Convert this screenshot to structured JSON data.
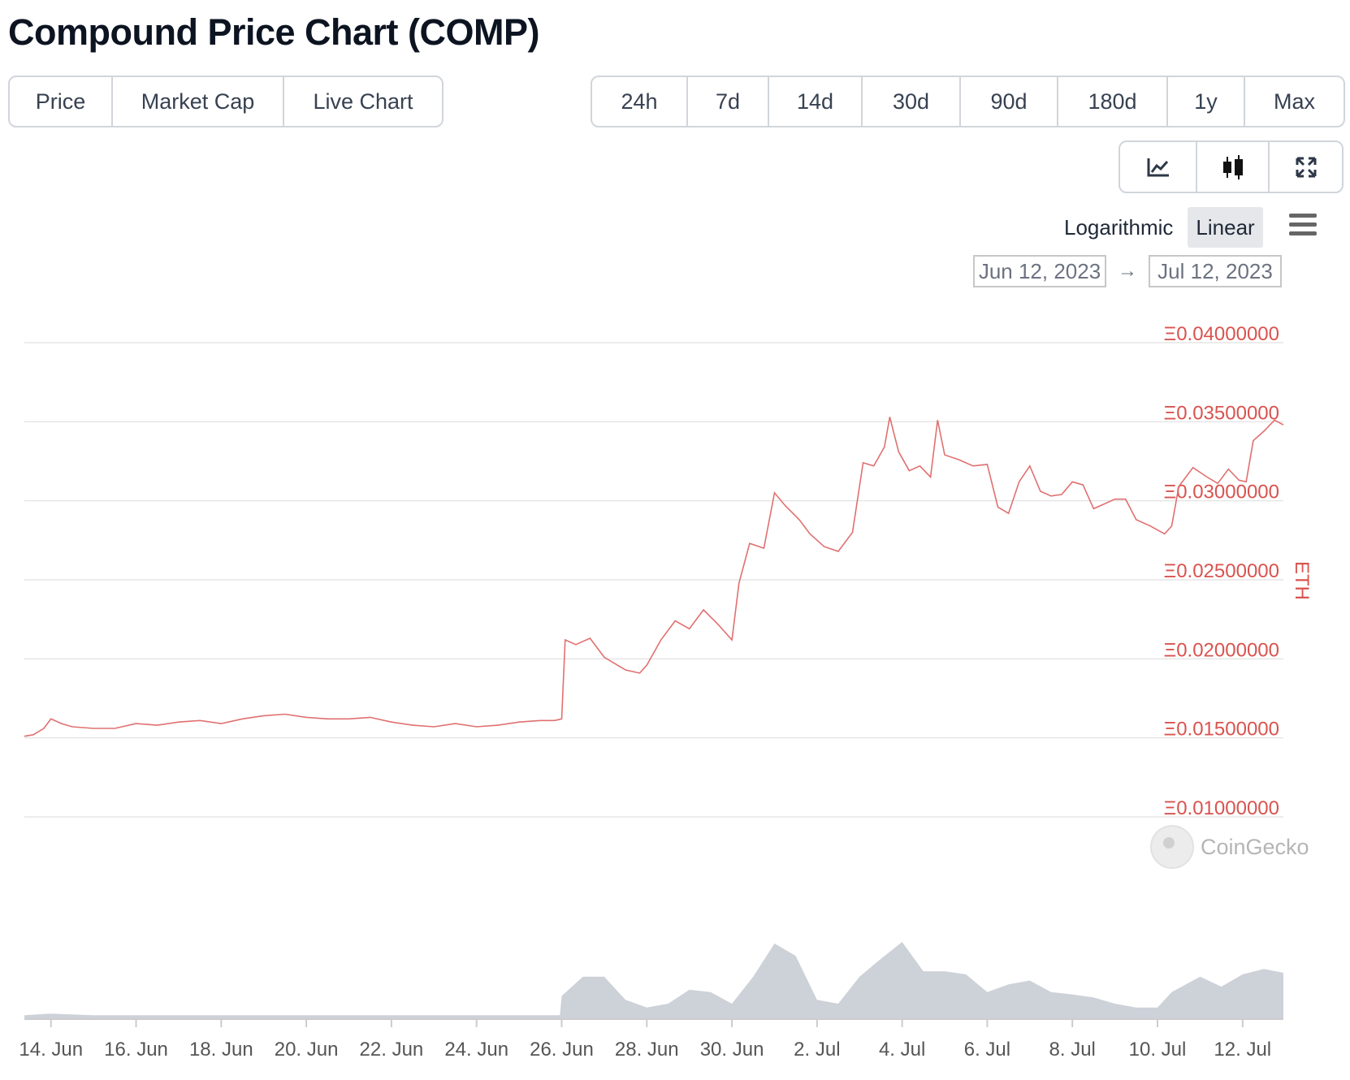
{
  "title": "Compound Price Chart (COMP)",
  "left_tabs": [
    {
      "label": "Price",
      "active": true
    },
    {
      "label": "Market Cap",
      "active": false
    },
    {
      "label": "Live Chart",
      "active": false
    }
  ],
  "range_tabs": [
    {
      "label": "24h",
      "active": false
    },
    {
      "label": "7d",
      "active": false
    },
    {
      "label": "14d",
      "active": false
    },
    {
      "label": "30d",
      "active": true
    },
    {
      "label": "90d",
      "active": false
    },
    {
      "label": "180d",
      "active": false
    },
    {
      "label": "1y",
      "active": false
    },
    {
      "label": "Max",
      "active": false
    }
  ],
  "view_tabs": [
    {
      "icon": "line-chart-icon",
      "active": true
    },
    {
      "icon": "candlestick-icon",
      "active": false
    },
    {
      "icon": "expand-icon",
      "active": false
    }
  ],
  "scale": {
    "logarithmic": "Logarithmic",
    "linear": "Linear",
    "active": "Linear"
  },
  "menu_icon": "hamburger-menu-icon",
  "date_range": {
    "from": "Jun 12, 2023",
    "arrow": "→",
    "to": "Jul 12, 2023"
  },
  "watermark": "CoinGecko",
  "colors": {
    "price_line": "#e07070",
    "volume": "#c8ccd4",
    "axis_label": "#d9534f",
    "grid": "#e6e6e6"
  },
  "chart_data": {
    "type": "line",
    "ylabel": "ETH",
    "yscale": "linear",
    "ylim": [
      0.01,
      0.04
    ],
    "yticks": [
      0.01,
      0.015,
      0.02,
      0.025,
      0.03,
      0.035,
      0.04
    ],
    "ytick_labels": [
      "Ξ0.01000000",
      "Ξ0.01500000",
      "Ξ0.02000000",
      "Ξ0.02500000",
      "Ξ0.03000000",
      "Ξ0.03500000",
      "Ξ0.04000000"
    ],
    "xlim": [
      "2023-06-13T09:00",
      "2023-07-12T23:00"
    ],
    "xticks": [
      "2023-06-14",
      "2023-06-16",
      "2023-06-18",
      "2023-06-20",
      "2023-06-22",
      "2023-06-24",
      "2023-06-26",
      "2023-06-28",
      "2023-06-30",
      "2023-07-02",
      "2023-07-04",
      "2023-07-06",
      "2023-07-08",
      "2023-07-10",
      "2023-07-12"
    ],
    "xtick_labels": [
      "14. Jun",
      "16. Jun",
      "18. Jun",
      "20. Jun",
      "22. Jun",
      "24. Jun",
      "26. Jun",
      "28. Jun",
      "30. Jun",
      "2. Jul",
      "4. Jul",
      "6. Jul",
      "8. Jul",
      "10. Jul",
      "12. Jul"
    ],
    "grid": true,
    "legend": "none",
    "series": [
      {
        "price": [
          [
            "2023-06-13T09:00",
            0.0151
          ],
          [
            "2023-06-13T14:00",
            0.0152
          ],
          [
            "2023-06-13T20:00",
            0.0156
          ],
          [
            "2023-06-14T00:00",
            0.0162
          ],
          [
            "2023-06-14T06:00",
            0.0159
          ],
          [
            "2023-06-14T12:00",
            0.0157
          ],
          [
            "2023-06-15T00:00",
            0.0156
          ],
          [
            "2023-06-15T12:00",
            0.0156
          ],
          [
            "2023-06-16T00:00",
            0.0159
          ],
          [
            "2023-06-16T12:00",
            0.0158
          ],
          [
            "2023-06-17T00:00",
            0.016
          ],
          [
            "2023-06-17T12:00",
            0.0161
          ],
          [
            "2023-06-18T00:00",
            0.0159
          ],
          [
            "2023-06-18T12:00",
            0.0162
          ],
          [
            "2023-06-19T00:00",
            0.0164
          ],
          [
            "2023-06-19T12:00",
            0.0165
          ],
          [
            "2023-06-20T00:00",
            0.0163
          ],
          [
            "2023-06-20T12:00",
            0.0162
          ],
          [
            "2023-06-21T00:00",
            0.0162
          ],
          [
            "2023-06-21T12:00",
            0.0163
          ],
          [
            "2023-06-22T00:00",
            0.016
          ],
          [
            "2023-06-22T12:00",
            0.0158
          ],
          [
            "2023-06-23T00:00",
            0.0157
          ],
          [
            "2023-06-23T12:00",
            0.0159
          ],
          [
            "2023-06-24T00:00",
            0.0157
          ],
          [
            "2023-06-24T12:00",
            0.0158
          ],
          [
            "2023-06-25T00:00",
            0.016
          ],
          [
            "2023-06-25T12:00",
            0.0161
          ],
          [
            "2023-06-25T20:00",
            0.0161
          ],
          [
            "2023-06-26T00:00",
            0.0162
          ],
          [
            "2023-06-26T02:00",
            0.0212
          ],
          [
            "2023-06-26T08:00",
            0.0209
          ],
          [
            "2023-06-26T16:00",
            0.0213
          ],
          [
            "2023-06-27T00:00",
            0.0201
          ],
          [
            "2023-06-27T12:00",
            0.0193
          ],
          [
            "2023-06-27T20:00",
            0.0191
          ],
          [
            "2023-06-28T00:00",
            0.0196
          ],
          [
            "2023-06-28T08:00",
            0.0212
          ],
          [
            "2023-06-28T16:00",
            0.0224
          ],
          [
            "2023-06-29T00:00",
            0.0219
          ],
          [
            "2023-06-29T08:00",
            0.0231
          ],
          [
            "2023-06-29T16:00",
            0.0222
          ],
          [
            "2023-06-30T00:00",
            0.0212
          ],
          [
            "2023-06-30T04:00",
            0.0248
          ],
          [
            "2023-06-30T10:00",
            0.0273
          ],
          [
            "2023-06-30T18:00",
            0.027
          ],
          [
            "2023-07-01T00:00",
            0.0305
          ],
          [
            "2023-07-01T06:00",
            0.0297
          ],
          [
            "2023-07-01T14:00",
            0.0288
          ],
          [
            "2023-07-01T20:00",
            0.0279
          ],
          [
            "2023-07-02T04:00",
            0.0271
          ],
          [
            "2023-07-02T12:00",
            0.0268
          ],
          [
            "2023-07-02T20:00",
            0.028
          ],
          [
            "2023-07-03T02:00",
            0.0324
          ],
          [
            "2023-07-03T08:00",
            0.0322
          ],
          [
            "2023-07-03T14:00",
            0.0334
          ],
          [
            "2023-07-03T17:00",
            0.0353
          ],
          [
            "2023-07-03T22:00",
            0.0331
          ],
          [
            "2023-07-04T04:00",
            0.0319
          ],
          [
            "2023-07-04T10:00",
            0.0322
          ],
          [
            "2023-07-04T16:00",
            0.0315
          ],
          [
            "2023-07-04T20:00",
            0.0351
          ],
          [
            "2023-07-05T00:00",
            0.0329
          ],
          [
            "2023-07-05T08:00",
            0.0326
          ],
          [
            "2023-07-05T16:00",
            0.0322
          ],
          [
            "2023-07-06T00:00",
            0.0323
          ],
          [
            "2023-07-06T06:00",
            0.0296
          ],
          [
            "2023-07-06T12:00",
            0.0292
          ],
          [
            "2023-07-06T18:00",
            0.0312
          ],
          [
            "2023-07-07T00:00",
            0.0322
          ],
          [
            "2023-07-07T06:00",
            0.0306
          ],
          [
            "2023-07-07T12:00",
            0.0303
          ],
          [
            "2023-07-07T18:00",
            0.0304
          ],
          [
            "2023-07-08T00:00",
            0.0312
          ],
          [
            "2023-07-08T06:00",
            0.031
          ],
          [
            "2023-07-08T12:00",
            0.0295
          ],
          [
            "2023-07-08T18:00",
            0.0298
          ],
          [
            "2023-07-09T00:00",
            0.0301
          ],
          [
            "2023-07-09T06:00",
            0.0301
          ],
          [
            "2023-07-09T12:00",
            0.0288
          ],
          [
            "2023-07-09T20:00",
            0.0284
          ],
          [
            "2023-07-10T04:00",
            0.0279
          ],
          [
            "2023-07-10T08:00",
            0.0284
          ],
          [
            "2023-07-10T12:00",
            0.0309
          ],
          [
            "2023-07-10T20:00",
            0.0321
          ],
          [
            "2023-07-11T04:00",
            0.0315
          ],
          [
            "2023-07-11T10:00",
            0.0311
          ],
          [
            "2023-07-11T16:00",
            0.032
          ],
          [
            "2023-07-11T22:00",
            0.0313
          ],
          [
            "2023-07-12T02:00",
            0.0312
          ],
          [
            "2023-07-12T06:00",
            0.0338
          ],
          [
            "2023-07-12T12:00",
            0.0344
          ],
          [
            "2023-07-12T18:00",
            0.0351
          ],
          [
            "2023-07-12T23:00",
            0.0348
          ]
        ]
      },
      {
        "volume_relative": [
          [
            "2023-06-13T09:00",
            0.05
          ],
          [
            "2023-06-14T00:00",
            0.07
          ],
          [
            "2023-06-15T00:00",
            0.05
          ],
          [
            "2023-06-17T00:00",
            0.05
          ],
          [
            "2023-06-19T00:00",
            0.05
          ],
          [
            "2023-06-21T00:00",
            0.05
          ],
          [
            "2023-06-23T00:00",
            0.05
          ],
          [
            "2023-06-25T00:00",
            0.05
          ],
          [
            "2023-06-25T23:00",
            0.05
          ],
          [
            "2023-06-26T00:00",
            0.3
          ],
          [
            "2023-06-26T12:00",
            0.55
          ],
          [
            "2023-06-27T00:00",
            0.55
          ],
          [
            "2023-06-27T12:00",
            0.25
          ],
          [
            "2023-06-28T00:00",
            0.15
          ],
          [
            "2023-06-28T12:00",
            0.2
          ],
          [
            "2023-06-29T00:00",
            0.38
          ],
          [
            "2023-06-29T12:00",
            0.35
          ],
          [
            "2023-06-30T00:00",
            0.2
          ],
          [
            "2023-06-30T12:00",
            0.55
          ],
          [
            "2023-07-01T00:00",
            0.98
          ],
          [
            "2023-07-01T12:00",
            0.82
          ],
          [
            "2023-07-02T00:00",
            0.25
          ],
          [
            "2023-07-02T12:00",
            0.2
          ],
          [
            "2023-07-03T00:00",
            0.55
          ],
          [
            "2023-07-03T12:00",
            0.78
          ],
          [
            "2023-07-04T00:00",
            1.0
          ],
          [
            "2023-07-04T12:00",
            0.62
          ],
          [
            "2023-07-05T00:00",
            0.62
          ],
          [
            "2023-07-05T12:00",
            0.58
          ],
          [
            "2023-07-06T00:00",
            0.35
          ],
          [
            "2023-07-06T12:00",
            0.45
          ],
          [
            "2023-07-07T00:00",
            0.5
          ],
          [
            "2023-07-07T12:00",
            0.35
          ],
          [
            "2023-07-08T00:00",
            0.32
          ],
          [
            "2023-07-08T12:00",
            0.28
          ],
          [
            "2023-07-09T00:00",
            0.2
          ],
          [
            "2023-07-09T12:00",
            0.15
          ],
          [
            "2023-07-10T00:00",
            0.15
          ],
          [
            "2023-07-10T08:00",
            0.35
          ],
          [
            "2023-07-11T00:00",
            0.55
          ],
          [
            "2023-07-11T12:00",
            0.42
          ],
          [
            "2023-07-12T00:00",
            0.58
          ],
          [
            "2023-07-12T12:00",
            0.65
          ],
          [
            "2023-07-12T23:00",
            0.6
          ]
        ]
      }
    ]
  }
}
